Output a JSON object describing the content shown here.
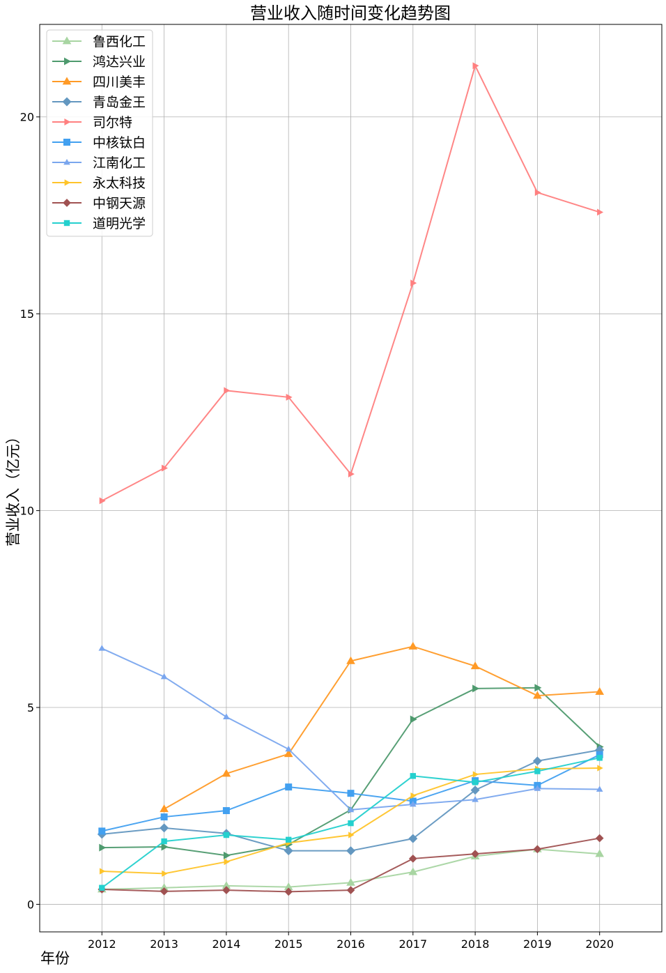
{
  "chart_data": {
    "type": "line",
    "title": "营业收入随时间变化趋势图",
    "xlabel": "年份",
    "ylabel": "营业收入（亿元）",
    "x": [
      "2012",
      "2013",
      "2014",
      "2015",
      "2016",
      "2017",
      "2018",
      "2019",
      "2020"
    ],
    "xlim": [
      2011,
      2021
    ],
    "ylim": [
      -0.7,
      22.35
    ],
    "yticks": [
      0,
      5,
      10,
      15,
      20
    ],
    "grid": true,
    "legend_position": "top-left",
    "series": [
      {
        "name": "鲁西化工",
        "color": "#a8d5a2",
        "marker": "triangle-up",
        "values": [
          0.38,
          0.42,
          0.47,
          0.44,
          0.55,
          0.82,
          1.22,
          1.4,
          1.28
        ]
      },
      {
        "name": "鸿达兴业",
        "color": "#4e9a6e",
        "marker": "triangle-right",
        "values": [
          1.44,
          1.46,
          1.24,
          1.52,
          2.4,
          4.7,
          5.48,
          5.5,
          4.0
        ]
      },
      {
        "name": "四川美丰",
        "color": "#ff9a26",
        "marker": "triangle-up",
        "values": [
          null,
          2.42,
          3.32,
          3.82,
          6.18,
          6.55,
          6.05,
          5.3,
          5.4
        ]
      },
      {
        "name": "青岛金王",
        "color": "#6397c0",
        "marker": "diamond",
        "values": [
          1.78,
          1.94,
          1.8,
          1.36,
          1.36,
          1.67,
          2.9,
          3.64,
          3.92
        ]
      },
      {
        "name": "司尔特",
        "color": "#ff8080",
        "marker": "triangle-right",
        "values": [
          10.25,
          11.08,
          13.05,
          12.88,
          10.93,
          15.78,
          21.3,
          18.08,
          17.58
        ]
      },
      {
        "name": "中核钛白",
        "color": "#42a0f0",
        "marker": "square",
        "values": [
          1.86,
          2.22,
          2.38,
          2.98,
          2.82,
          2.62,
          3.14,
          3.02,
          3.8
        ]
      },
      {
        "name": "江南化工",
        "color": "#7aa6ee",
        "marker": "triangle-up",
        "values": [
          6.5,
          5.78,
          4.76,
          3.94,
          2.4,
          2.54,
          2.66,
          2.94,
          2.92
        ]
      },
      {
        "name": "永太科技",
        "color": "#ffc42a",
        "marker": "triangle-right",
        "values": [
          0.84,
          0.78,
          1.08,
          1.56,
          1.76,
          2.76,
          3.3,
          3.44,
          3.46
        ]
      },
      {
        "name": "中钢天源",
        "color": "#a05252",
        "marker": "diamond",
        "values": [
          0.38,
          0.33,
          0.36,
          0.32,
          0.36,
          1.16,
          1.28,
          1.4,
          1.68
        ]
      },
      {
        "name": "道明光学",
        "color": "#24d0ce",
        "marker": "square",
        "values": [
          0.42,
          1.6,
          1.76,
          1.64,
          2.06,
          3.26,
          3.1,
          3.38,
          3.72
        ]
      }
    ]
  }
}
